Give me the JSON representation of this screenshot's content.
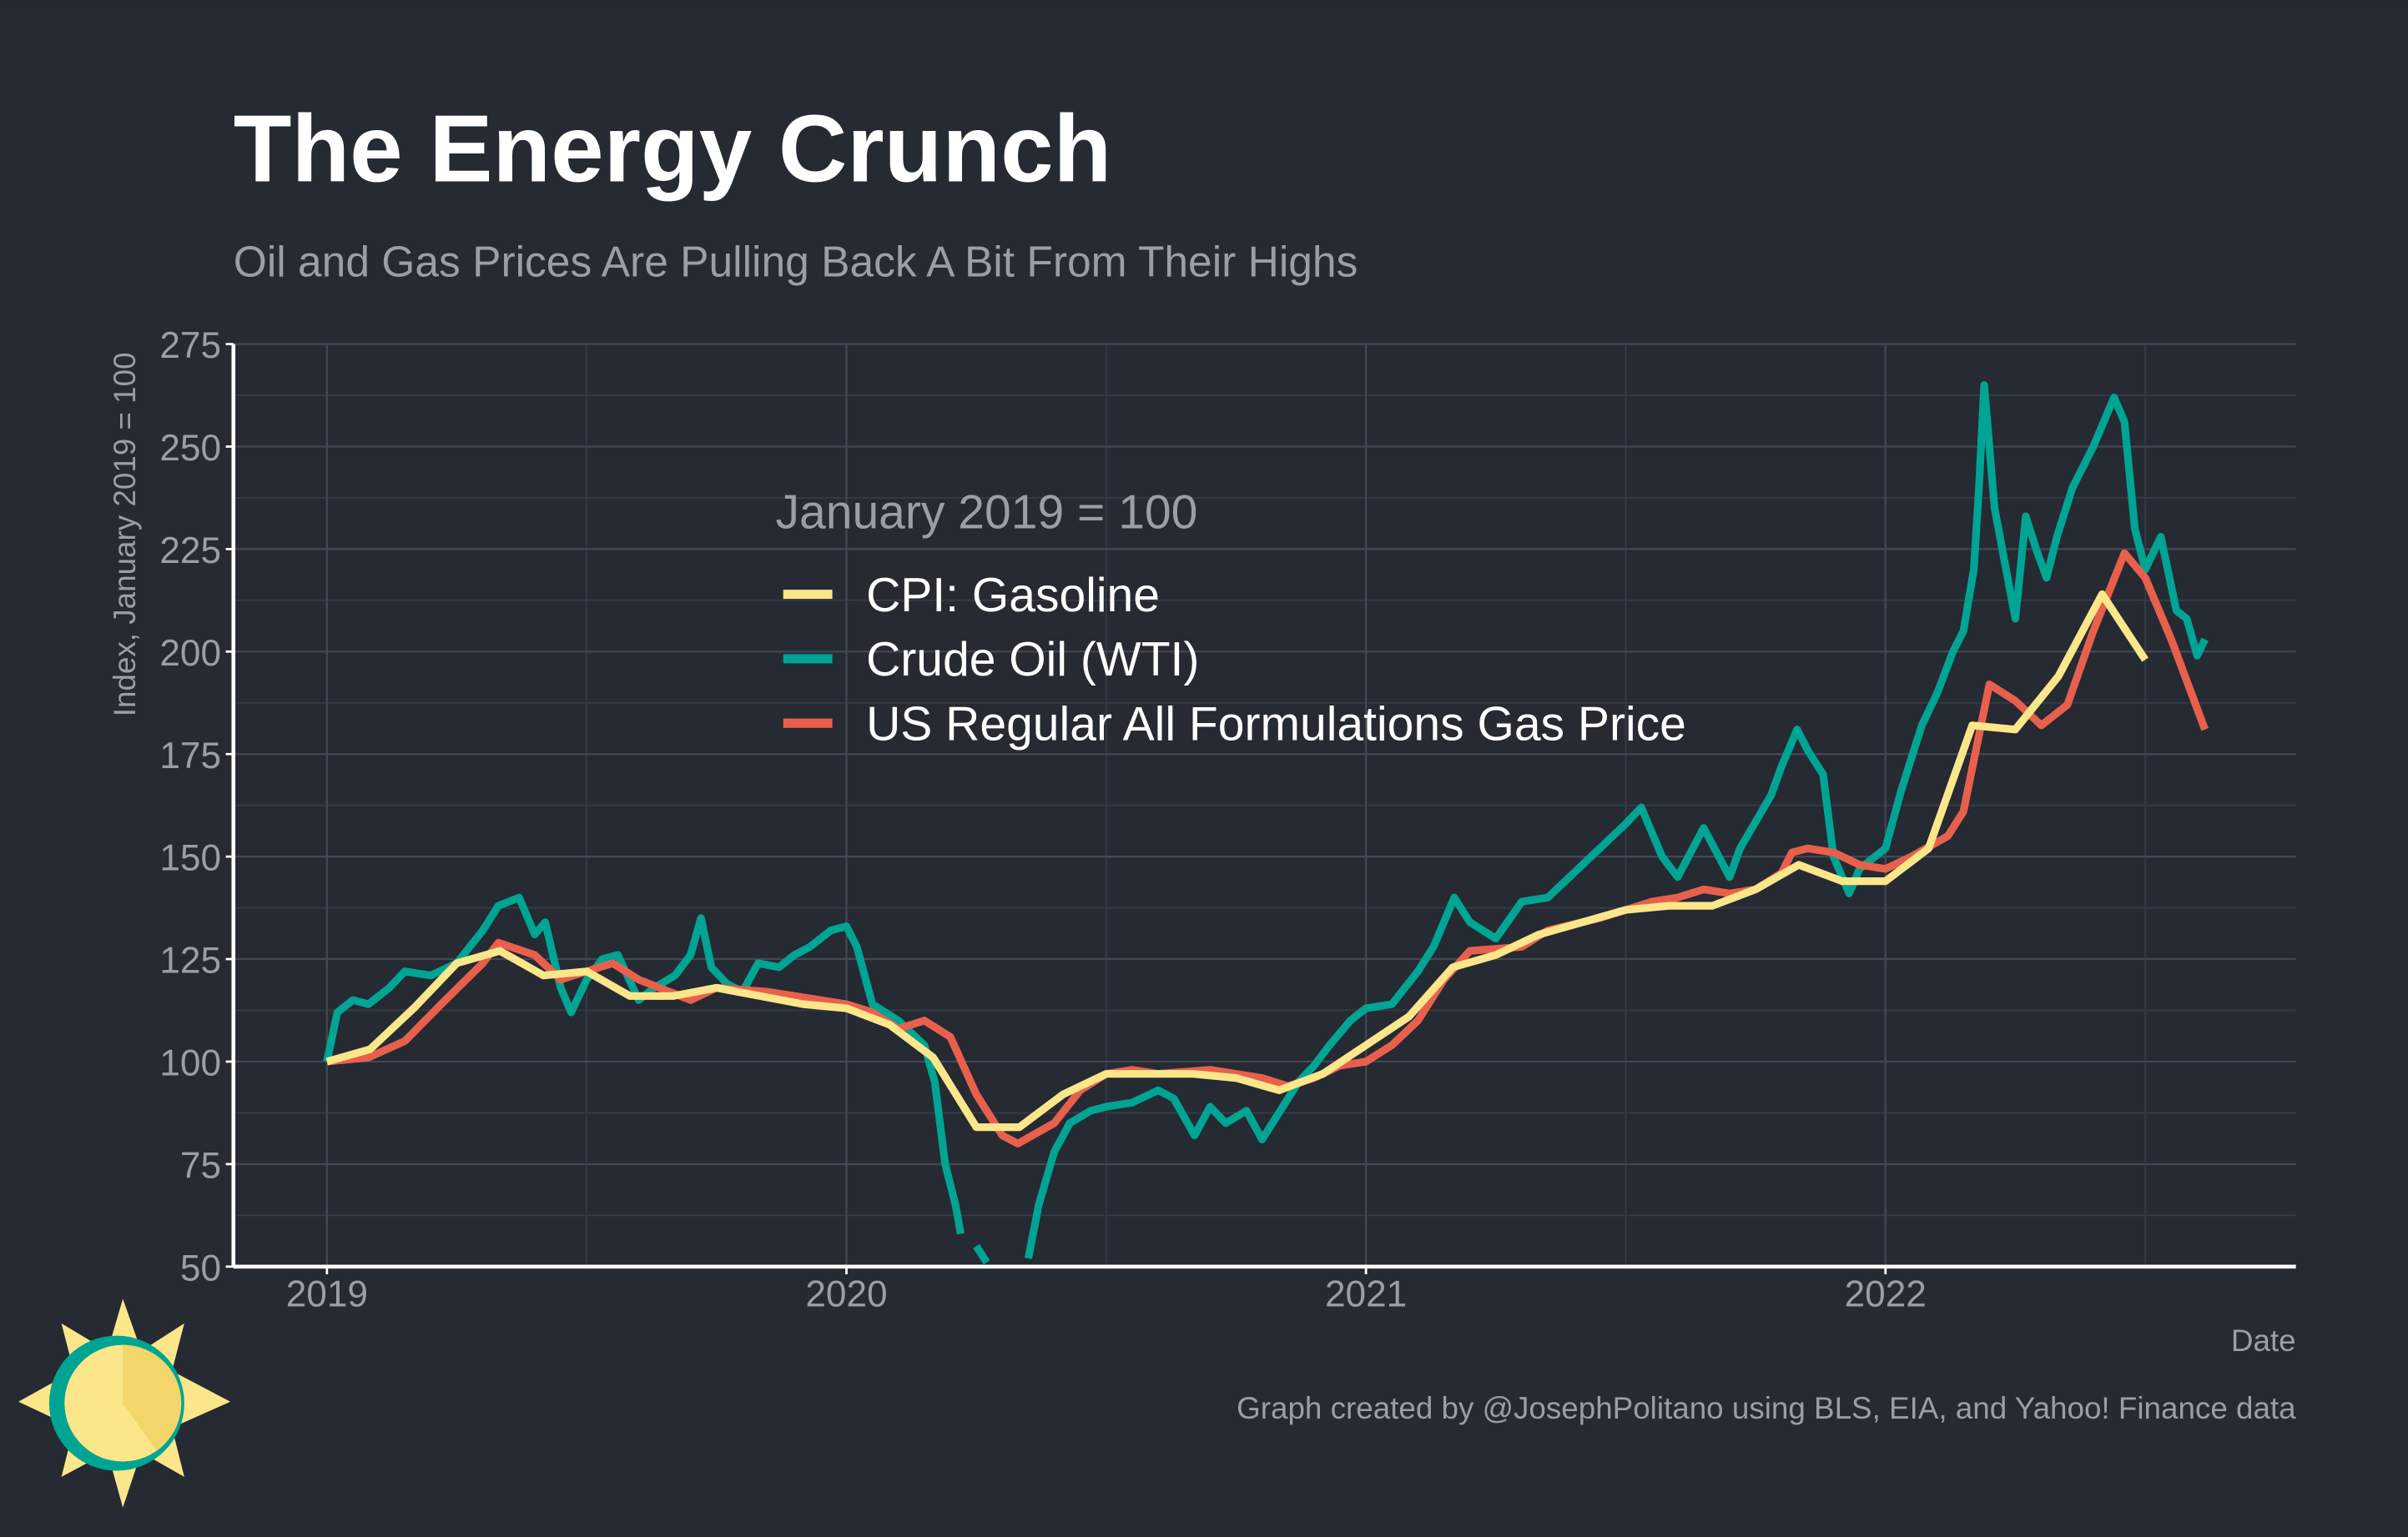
{
  "chart_data": {
    "type": "line",
    "title": "The Energy Crunch",
    "subtitle": "Oil and Gas Prices Are Pulling Back A Bit From Their Highs",
    "y_label": "Index, January 2019 = 100",
    "x_label": "Date",
    "legend_title": "January 2019 = 100",
    "caption": "Graph created by @JosephPolitano using BLS, EIA, and Yahoo! Finance data",
    "xlim": [
      2018.82,
      2022.79
    ],
    "xticks": [
      2019,
      2020,
      2021,
      2022
    ],
    "ylim": [
      50,
      275
    ],
    "yticks": [
      50,
      75,
      100,
      125,
      150,
      175,
      200,
      225,
      250,
      275
    ],
    "grid": true,
    "legend_position": "upper-center",
    "series": [
      {
        "name": "CPI: Gasoline",
        "color": "#fbe68a",
        "x": [
          2019.0,
          2019.083,
          2019.167,
          2019.25,
          2019.333,
          2019.417,
          2019.5,
          2019.583,
          2019.667,
          2019.75,
          2019.833,
          2019.917,
          2020.0,
          2020.083,
          2020.167,
          2020.25,
          2020.333,
          2020.417,
          2020.5,
          2020.583,
          2020.667,
          2020.75,
          2020.833,
          2020.917,
          2021.0,
          2021.083,
          2021.167,
          2021.25,
          2021.333,
          2021.417,
          2021.5,
          2021.583,
          2021.667,
          2021.75,
          2021.833,
          2021.917,
          2022.0,
          2022.083,
          2022.167,
          2022.25,
          2022.333,
          2022.417,
          2022.5
        ],
        "values": [
          100,
          103,
          113,
          124,
          127,
          121,
          122,
          116,
          116,
          118,
          116,
          114,
          113,
          109,
          101,
          84,
          84,
          92,
          97,
          97,
          97,
          96,
          93,
          97,
          104,
          111,
          123,
          126,
          131,
          134,
          137,
          138,
          138,
          142,
          148,
          144,
          144,
          152,
          182,
          181,
          194,
          214,
          198
        ]
      },
      {
        "name": "Crude Oil (WTI)",
        "color": "#00a493",
        "x": [
          2019.0,
          2019.02,
          2019.05,
          2019.08,
          2019.12,
          2019.15,
          2019.2,
          2019.25,
          2019.3,
          2019.33,
          2019.37,
          2019.4,
          2019.42,
          2019.45,
          2019.47,
          2019.5,
          2019.53,
          2019.56,
          2019.6,
          2019.63,
          2019.67,
          2019.7,
          2019.72,
          2019.74,
          2019.77,
          2019.8,
          2019.83,
          2019.87,
          2019.9,
          2019.93,
          2019.97,
          2020.0,
          2020.02,
          2020.05,
          2020.1,
          2020.15,
          2020.17,
          2020.19,
          2020.21,
          2020.22,
          2020.235,
          2020.25,
          2020.27,
          2020.3,
          2020.35,
          2020.37,
          2020.4,
          2020.43,
          2020.47,
          2020.5,
          2020.55,
          2020.6,
          2020.63,
          2020.67,
          2020.7,
          2020.73,
          2020.77,
          2020.8,
          2020.83,
          2020.87,
          2020.9,
          2020.93,
          2020.97,
          2021.0,
          2021.05,
          2021.1,
          2021.13,
          2021.17,
          2021.2,
          2021.25,
          2021.3,
          2021.35,
          2021.4,
          2021.45,
          2021.5,
          2021.53,
          2021.57,
          2021.6,
          2021.65,
          2021.7,
          2021.72,
          2021.78,
          2021.8,
          2021.83,
          2021.85,
          2021.88,
          2021.9,
          2021.93,
          2021.95,
          2022.0,
          2022.03,
          2022.07,
          2022.1,
          2022.13,
          2022.15,
          2022.17,
          2022.18,
          2022.19,
          2022.21,
          2022.25,
          2022.27,
          2022.29,
          2022.31,
          2022.33,
          2022.36,
          2022.4,
          2022.44,
          2022.46,
          2022.48,
          2022.5,
          2022.53,
          2022.56,
          2022.58,
          2022.6,
          2022.615
        ],
        "values": [
          100,
          112,
          115,
          114,
          118,
          122,
          121,
          124,
          132,
          138,
          140,
          131,
          134,
          118,
          112,
          120,
          125,
          126,
          115,
          118,
          121,
          126,
          135,
          123,
          119,
          117,
          124,
          123,
          126,
          128,
          132,
          133,
          128,
          114,
          110,
          104,
          95,
          75,
          65,
          58,
          null,
          55,
          51,
          null,
          52,
          65,
          78,
          85,
          88,
          89,
          90,
          93,
          91,
          82,
          89,
          85,
          88,
          81,
          87,
          95,
          99,
          104,
          110,
          113,
          114,
          122,
          128,
          140,
          134,
          130,
          139,
          140,
          146,
          152,
          158,
          162,
          150,
          145,
          157,
          145,
          152,
          165,
          172,
          181,
          176,
          170,
          150,
          141,
          147,
          152,
          166,
          182,
          190,
          200,
          205,
          220,
          240,
          265,
          235,
          208,
          233,
          225,
          218,
          228,
          240,
          250,
          262,
          256,
          230,
          220,
          228,
          210,
          208,
          199,
          203
        ]
      },
      {
        "name": "US Regular All Formulations Gas Price",
        "color": "#e8604c",
        "x": [
          2019.0,
          2019.08,
          2019.15,
          2019.22,
          2019.3,
          2019.33,
          2019.4,
          2019.45,
          2019.5,
          2019.55,
          2019.6,
          2019.7,
          2019.75,
          2019.85,
          2019.95,
          2020.0,
          2020.05,
          2020.1,
          2020.15,
          2020.2,
          2020.25,
          2020.3,
          2020.33,
          2020.4,
          2020.45,
          2020.5,
          2020.55,
          2020.6,
          2020.7,
          2020.75,
          2020.8,
          2020.85,
          2020.9,
          2020.95,
          2021.0,
          2021.05,
          2021.1,
          2021.15,
          2021.2,
          2021.3,
          2021.35,
          2021.45,
          2021.55,
          2021.6,
          2021.65,
          2021.7,
          2021.75,
          2021.8,
          2021.82,
          2021.85,
          2021.9,
          2021.95,
          2022.0,
          2022.05,
          2022.12,
          2022.15,
          2022.2,
          2022.25,
          2022.3,
          2022.35,
          2022.4,
          2022.46,
          2022.5,
          2022.55,
          2022.615
        ],
        "values": [
          100,
          101,
          105,
          114,
          124,
          129,
          126,
          120,
          122,
          124,
          120,
          115,
          118,
          117,
          115,
          114,
          112,
          108,
          110,
          106,
          92,
          82,
          80,
          85,
          93,
          97,
          98,
          97,
          98,
          97,
          96,
          94,
          96,
          99,
          100,
          104,
          110,
          120,
          127,
          128,
          132,
          135,
          139,
          140,
          142,
          141,
          142,
          146,
          151,
          152,
          151,
          148,
          147,
          150,
          155,
          161,
          192,
          188,
          182,
          187,
          205,
          224,
          218,
          203,
          181
        ]
      }
    ]
  }
}
